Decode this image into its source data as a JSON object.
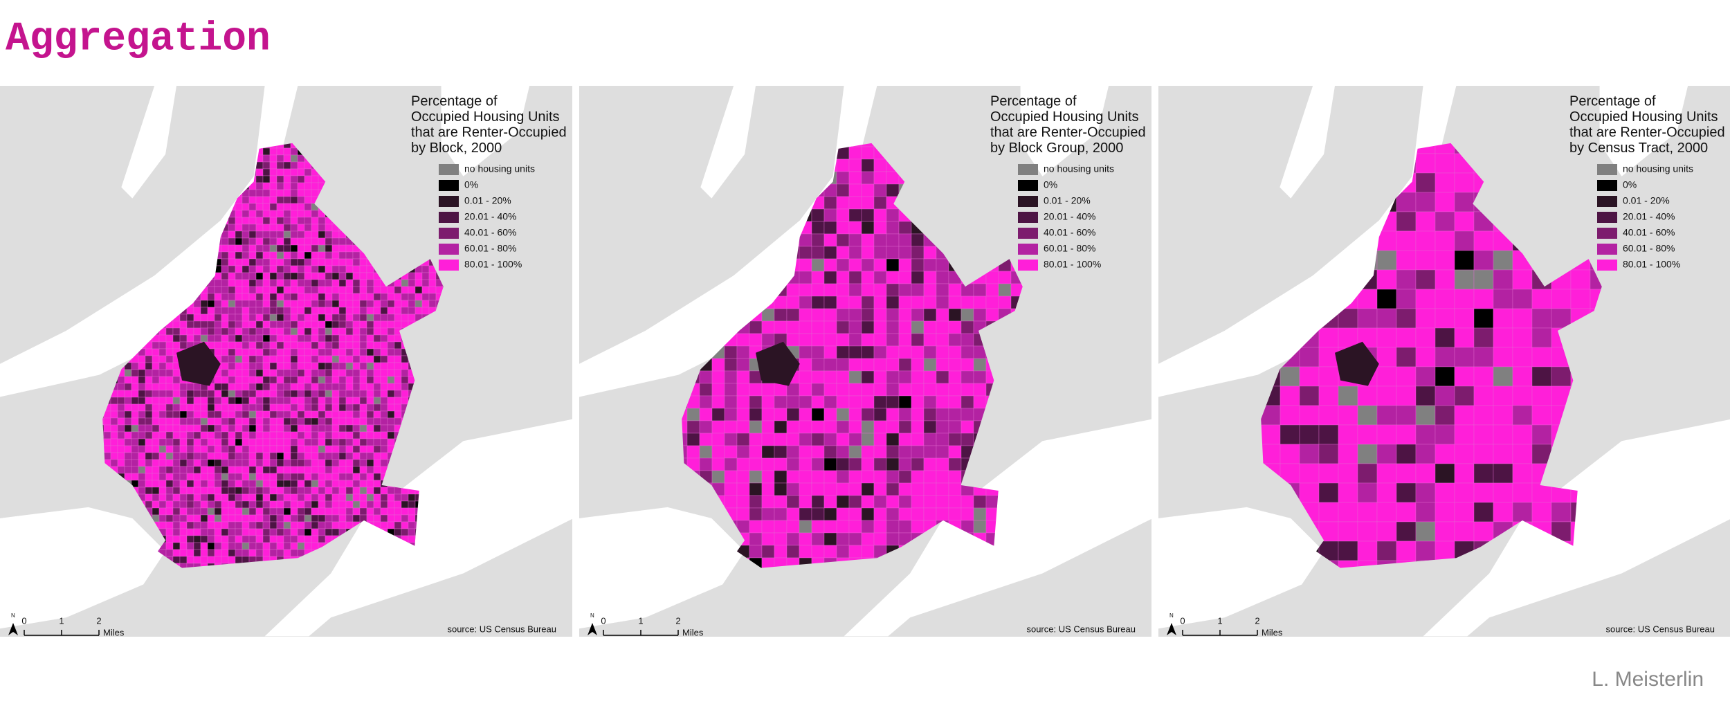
{
  "title": "Aggregation",
  "panels": [
    {
      "legend_title": [
        "Percentage of",
        "Occupied Housing Units",
        "that are Renter-Occupied",
        "by Block, 2000"
      ],
      "legend": [
        {
          "label": "no housing units",
          "color": "#808080"
        },
        {
          "label": "0%",
          "color": "#000000"
        },
        {
          "label": "0.01 - 20%",
          "color": "#2b1424"
        },
        {
          "label": "20.01 - 40%",
          "color": "#4d1444"
        },
        {
          "label": "40.01 - 60%",
          "color": "#7d1c6e"
        },
        {
          "label": "60.01 - 80%",
          "color": "#b322a2"
        },
        {
          "label": "80.01 - 100%",
          "color": "#ff1fd9"
        }
      ],
      "north": "N",
      "scale": [
        "0",
        "1",
        "2"
      ],
      "scale_unit": "Miles",
      "source": "source: US Census Bureau"
    },
    {
      "legend_title": [
        "Percentage of",
        "Occupied Housing Units",
        "that are Renter-Occupied",
        "by Block Group, 2000"
      ],
      "legend": [
        {
          "label": "no housing units",
          "color": "#808080"
        },
        {
          "label": "0%",
          "color": "#000000"
        },
        {
          "label": "0.01 - 20%",
          "color": "#2b1424"
        },
        {
          "label": "20.01 - 40%",
          "color": "#4d1444"
        },
        {
          "label": "40.01 - 60%",
          "color": "#7d1c6e"
        },
        {
          "label": "60.01 - 80%",
          "color": "#b322a2"
        },
        {
          "label": "80.01 - 100%",
          "color": "#ff1fd9"
        }
      ],
      "north": "N",
      "scale": [
        "0",
        "1",
        "2"
      ],
      "scale_unit": "Miles",
      "source": "source: US Census Bureau"
    },
    {
      "legend_title": [
        "Percentage of",
        "Occupied Housing Units",
        "that are Renter-Occupied",
        "by Census Tract, 2000"
      ],
      "legend": [
        {
          "label": "no housing units",
          "color": "#808080"
        },
        {
          "label": "0%",
          "color": "#000000"
        },
        {
          "label": "0.01 - 20%",
          "color": "#2b1424"
        },
        {
          "label": "20.01 - 40%",
          "color": "#4d1444"
        },
        {
          "label": "40.01 - 60%",
          "color": "#7d1c6e"
        },
        {
          "label": "60.01 - 80%",
          "color": "#b322a2"
        },
        {
          "label": "80.01 - 100%",
          "color": "#ff1fd9"
        }
      ],
      "north": "N",
      "scale": [
        "0",
        "1",
        "2"
      ],
      "scale_unit": "Miles",
      "source": "source: US Census Bureau"
    }
  ],
  "author": "L. Meisterlin"
}
